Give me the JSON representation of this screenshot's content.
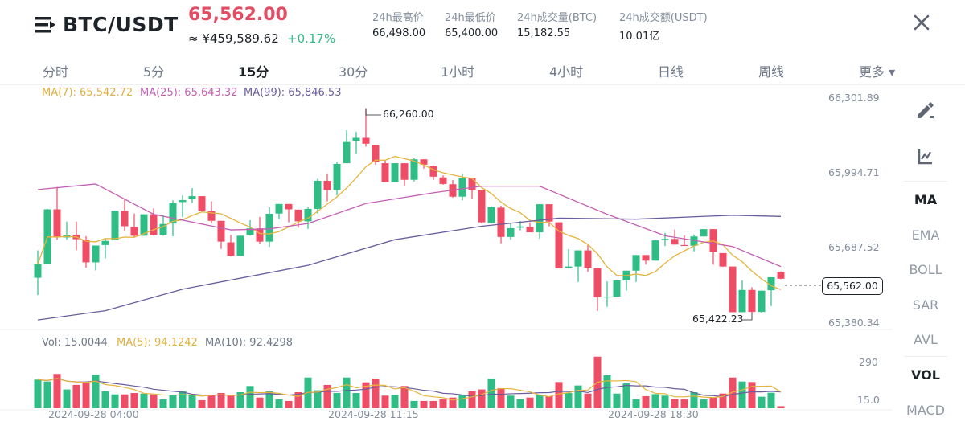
{
  "header": {
    "pair": "BTC/USDT",
    "last_price": "65,562.00",
    "cny_price": "≈ ¥459,589.62",
    "change_pct": "+0.17%",
    "stats": [
      {
        "label": "24h最高价",
        "value": "66,498.00"
      },
      {
        "label": "24h最低价",
        "value": "65,400.00"
      },
      {
        "label": "24h成交量(BTC)",
        "value": "15,182.55"
      },
      {
        "label": "24h成交额(USDT)",
        "value": "10.01亿"
      }
    ],
    "menu_icon": "menu-arrow-icon",
    "close_icon": "close-icon"
  },
  "tabs": [
    {
      "label": "分时"
    },
    {
      "label": "5分"
    },
    {
      "label": "15分",
      "active": true
    },
    {
      "label": "30分"
    },
    {
      "label": "1小时"
    },
    {
      "label": "4小时"
    },
    {
      "label": "日线"
    },
    {
      "label": "周线"
    },
    {
      "label": "更多 ▾"
    }
  ],
  "legend": {
    "ma7": "MA(7): 65,542.72",
    "ma25": "MA(25): 65,643.32",
    "ma99": "MA(99): 65,846.53",
    "vol": "Vol: 15.0044",
    "vol_ma5": "MA(5): 94.1242",
    "vol_ma10": "MA(10): 92.4298"
  },
  "side_panel": {
    "icons": [
      "pencil-draw-icon",
      "chart-indicator-icon"
    ],
    "main_indicators": [
      "MA",
      "EMA",
      "BOLL",
      "SAR",
      "AVL"
    ],
    "sub_indicators": [
      "VOL",
      "MACD"
    ],
    "active_main": "MA",
    "active_sub": "VOL"
  },
  "colors": {
    "up": "#2ebd85",
    "down": "#ef4d65",
    "ma7": "#e6b43c",
    "ma25": "#c45fb3",
    "ma99": "#6b5d9e",
    "vol_ma5": "#e6b43c",
    "vol_ma10": "#6b5d9e"
  },
  "chart_data": {
    "type": "candlestick",
    "interval": "15分",
    "price_axis_ticks": [
      "66,301.89",
      "65,994.71",
      "65,687.52",
      "65,380.34"
    ],
    "ylim": [
      65380.34,
      66301.89
    ],
    "volume_axis_ticks": [
      "290",
      "15.0"
    ],
    "time_labels": [
      "2024-09-28 04:00",
      "2024-09-28 11:15",
      "2024-09-28 18:30"
    ],
    "high_marker": "66,260.00",
    "low_marker": "65,422.23",
    "last_price_tag": "65,562.00",
    "candles": [
      [
        65566,
        65678,
        65495,
        65621
      ],
      [
        65621,
        65848,
        65621,
        65846
      ],
      [
        65846,
        65938,
        65722,
        65731
      ],
      [
        65731,
        65796,
        65722,
        65742
      ],
      [
        65742,
        65796,
        65678,
        65724
      ],
      [
        65722,
        65736,
        65607,
        65629
      ],
      [
        65629,
        65698,
        65596,
        65698
      ],
      [
        65700,
        65727,
        65645,
        65717
      ],
      [
        65720,
        65840,
        65720,
        65840
      ],
      [
        65840,
        65890,
        65758,
        65777
      ],
      [
        65774,
        65829,
        65733,
        65738
      ],
      [
        65738,
        65826,
        65738,
        65826
      ],
      [
        65826,
        65850,
        65738,
        65741
      ],
      [
        65741,
        65821,
        65738,
        65786
      ],
      [
        65788,
        65883,
        65736,
        65872
      ],
      [
        65876,
        65903,
        65815,
        65884
      ],
      [
        65887,
        65933,
        65872,
        65900
      ],
      [
        65900,
        65900,
        65837,
        65840
      ],
      [
        65839,
        65879,
        65788,
        65799
      ],
      [
        65799,
        65799,
        65684,
        65714
      ],
      [
        65711,
        65741,
        65653,
        65656
      ],
      [
        65656,
        65738,
        65656,
        65738
      ],
      [
        65741,
        65802,
        65738,
        65768
      ],
      [
        65768,
        65815,
        65703,
        65714
      ],
      [
        65714,
        65854,
        65692,
        65828
      ],
      [
        65829,
        65868,
        65806,
        65868
      ],
      [
        65868,
        65868,
        65793,
        65846
      ],
      [
        65845,
        65845,
        65771,
        65797
      ],
      [
        65797,
        65854,
        65766,
        65848
      ],
      [
        65848,
        65971,
        65829,
        65963
      ],
      [
        65963,
        65993,
        65879,
        65925
      ],
      [
        65925,
        66040,
        65903,
        66032
      ],
      [
        66035,
        66170,
        66035,
        66122
      ],
      [
        66126,
        66163,
        66073,
        66139
      ],
      [
        66139,
        66260,
        66103,
        66115
      ],
      [
        66111,
        66111,
        66029,
        66040
      ],
      [
        66035,
        66046,
        65958,
        65958
      ],
      [
        65958,
        66035,
        65958,
        66035
      ],
      [
        66035,
        66035,
        65941,
        65967
      ],
      [
        65967,
        66057,
        65960,
        66051
      ],
      [
        66051,
        66051,
        66013,
        66029
      ],
      [
        66024,
        66026,
        65967,
        65980
      ],
      [
        65977,
        65985,
        65947,
        65950
      ],
      [
        65949,
        65966,
        65894,
        65898
      ],
      [
        65898,
        65993,
        65883,
        65974
      ],
      [
        65974,
        65974,
        65887,
        65925
      ],
      [
        65925,
        65925,
        65788,
        65793
      ],
      [
        65790,
        65858,
        65788,
        65856
      ],
      [
        65853,
        65861,
        65707,
        65733
      ],
      [
        65733,
        65787,
        65722,
        65769
      ],
      [
        65771,
        65798,
        65760,
        65776
      ],
      [
        65774,
        65793,
        65752,
        65752
      ],
      [
        65752,
        65867,
        65725,
        65867
      ],
      [
        65867,
        65867,
        65776,
        65796
      ],
      [
        65793,
        65793,
        65604,
        65604
      ],
      [
        65607,
        65683,
        65604,
        65612
      ],
      [
        65612,
        65678,
        65549,
        65678
      ],
      [
        65678,
        65700,
        65590,
        65607
      ],
      [
        65604,
        65604,
        65430,
        65486
      ],
      [
        65486,
        65551,
        65447,
        65489
      ],
      [
        65489,
        65555,
        65489,
        65555
      ],
      [
        65555,
        65595,
        65513,
        65595
      ],
      [
        65595,
        65659,
        65549,
        65659
      ],
      [
        65659,
        65659,
        65620,
        65636
      ],
      [
        65636,
        65719,
        65636,
        65719
      ],
      [
        65720,
        65749,
        65696,
        65725
      ],
      [
        65725,
        65763,
        65702,
        65702
      ],
      [
        65700,
        65740,
        65697,
        65697
      ],
      [
        65697,
        65743,
        65674,
        65735
      ],
      [
        65735,
        65765,
        65735,
        65765
      ],
      [
        65765,
        65765,
        65620,
        65672
      ],
      [
        65667,
        65667,
        65610,
        65612
      ],
      [
        65612,
        65612,
        65425,
        65425
      ],
      [
        65425,
        65555,
        65425,
        65516
      ],
      [
        65516,
        65527,
        65422.23,
        65426
      ],
      [
        65426,
        65513,
        65423,
        65513
      ],
      [
        65515,
        65568,
        65450,
        65568
      ],
      [
        65590,
        65592,
        65560,
        65562
      ]
    ],
    "volumes": [
      209,
      195,
      250,
      137,
      170,
      189,
      244,
      123,
      101,
      101,
      111,
      107,
      101,
      64,
      98,
      123,
      98,
      59,
      98,
      111,
      98,
      117,
      162,
      78,
      123,
      64,
      53,
      117,
      224,
      131,
      170,
      111,
      224,
      111,
      189,
      214,
      92,
      98,
      162,
      53,
      53,
      53,
      64,
      78,
      98,
      123,
      137,
      214,
      146,
      92,
      68,
      78,
      98,
      88,
      191,
      111,
      166,
      107,
      376,
      240,
      107,
      181,
      64,
      88,
      103,
      92,
      68,
      64,
      117,
      64,
      78,
      107,
      224,
      195,
      191,
      84,
      113,
      15.0044
    ],
    "ma25_points": [
      [
        1,
        65927
      ],
      [
        7,
        65950
      ],
      [
        13,
        65826
      ],
      [
        21,
        65762
      ],
      [
        25,
        65766
      ],
      [
        29,
        65788
      ],
      [
        35,
        65870
      ],
      [
        42,
        65914
      ],
      [
        47,
        65941
      ],
      [
        53,
        65941
      ],
      [
        60,
        65826
      ],
      [
        66,
        65738
      ],
      [
        73,
        65694
      ],
      [
        78,
        65612
      ]
    ],
    "ma99_points": [
      [
        1,
        65393
      ],
      [
        8,
        65431
      ],
      [
        16,
        65519
      ],
      [
        29,
        65617
      ],
      [
        38,
        65722
      ],
      [
        47,
        65777
      ],
      [
        55,
        65810
      ],
      [
        63,
        65806
      ],
      [
        73,
        65822
      ],
      [
        78,
        65817
      ]
    ]
  }
}
